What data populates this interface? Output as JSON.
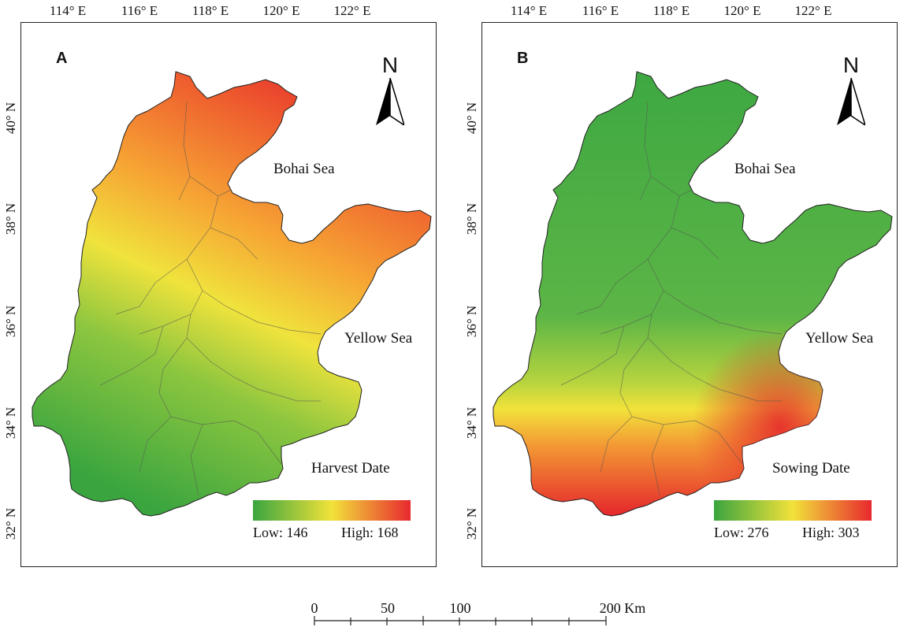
{
  "longitude_labels": [
    "114° E",
    "116° E",
    "118° E",
    "120° E",
    "122° E"
  ],
  "latitude_labels": [
    "40° N",
    "38° N",
    "36° N",
    "34° N",
    "32° N"
  ],
  "north_arrow_letter": "N",
  "panels": [
    {
      "letter": "A",
      "sea_labels": [
        "Bohai Sea",
        "Yellow Sea"
      ],
      "variable_label": "Harvest Date",
      "legend": {
        "low": "Low: 146",
        "high": "High: 168",
        "colors": [
          "#3aa53f",
          "#f2e23a",
          "#e8282e"
        ]
      }
    },
    {
      "letter": "B",
      "sea_labels": [
        "Bohai Sea",
        "Yellow Sea"
      ],
      "variable_label": "Sowing Date",
      "legend": {
        "low": "Low: 276",
        "high": "High: 303",
        "colors": [
          "#3aa53f",
          "#f2e23a",
          "#e8282e"
        ]
      }
    }
  ],
  "scale_bar": {
    "ticks": [
      "0",
      "50",
      "100",
      "200 Km"
    ]
  }
}
